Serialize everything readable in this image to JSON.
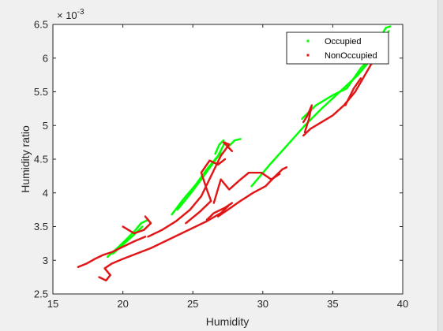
{
  "chart_data": {
    "type": "scatter",
    "title": "",
    "xlabel": "Humidity",
    "ylabel": "Humidity ratio",
    "y_exponent_label": "× 10",
    "y_exponent_power": "-3",
    "xlim": [
      15,
      40
    ],
    "ylim": [
      2.5,
      6.5
    ],
    "x_ticks": [
      15,
      20,
      25,
      30,
      35,
      40
    ],
    "x_tick_labels": [
      "15",
      "20",
      "25",
      "30",
      "35",
      "40"
    ],
    "y_ticks": [
      2.5,
      3,
      3.5,
      4,
      4.5,
      5,
      5.5,
      6,
      6.5
    ],
    "y_tick_labels": [
      "2.5",
      "3",
      "3.5",
      "4",
      "4.5",
      "5",
      "5.5",
      "6",
      "6.5"
    ],
    "grid": false,
    "legend_position": "top-right",
    "series": [
      {
        "name": "Occupied",
        "color": "#00ff00",
        "segments": [
          [
            [
              18.9,
              3.05
            ],
            [
              19.6,
              3.18
            ],
            [
              20.3,
              3.32
            ],
            [
              20.9,
              3.45
            ],
            [
              21.3,
              3.55
            ],
            [
              21.8,
              3.6
            ]
          ],
          [
            [
              19.3,
              3.1
            ],
            [
              20.1,
              3.25
            ],
            [
              20.8,
              3.38
            ],
            [
              21.4,
              3.5
            ]
          ],
          [
            [
              23.5,
              3.68
            ],
            [
              24.3,
              3.9
            ],
            [
              25.2,
              4.12
            ],
            [
              26.0,
              4.35
            ],
            [
              26.8,
              4.55
            ],
            [
              27.3,
              4.75
            ]
          ],
          [
            [
              23.9,
              3.75
            ],
            [
              24.8,
              3.98
            ],
            [
              25.6,
              4.2
            ],
            [
              26.3,
              4.4
            ],
            [
              27.0,
              4.6
            ]
          ],
          [
            [
              27.6,
              4.7
            ],
            [
              28.0,
              4.78
            ],
            [
              28.4,
              4.8
            ]
          ],
          [
            [
              26.6,
              4.58
            ],
            [
              26.9,
              4.72
            ],
            [
              27.2,
              4.78
            ]
          ],
          [
            [
              29.2,
              4.1
            ],
            [
              30.5,
              4.42
            ],
            [
              31.8,
              4.72
            ],
            [
              33.0,
              5.0
            ],
            [
              34.2,
              5.25
            ],
            [
              35.5,
              5.5
            ],
            [
              36.8,
              5.75
            ],
            [
              38.0,
              6.05
            ],
            [
              39.0,
              6.4
            ]
          ],
          [
            [
              32.8,
              5.1
            ],
            [
              33.8,
              5.3
            ],
            [
              35.0,
              5.45
            ],
            [
              36.0,
              5.55
            ],
            [
              37.0,
              5.85
            ],
            [
              37.8,
              6.02
            ]
          ],
          [
            [
              38.5,
              6.35
            ],
            [
              38.8,
              6.45
            ],
            [
              39.1,
              6.47
            ]
          ]
        ]
      },
      {
        "name": "NonOccupied",
        "color": "#e01414",
        "segments": [
          [
            [
              16.8,
              2.9
            ],
            [
              17.4,
              2.95
            ],
            [
              18.0,
              3.02
            ],
            [
              18.6,
              3.08
            ],
            [
              19.2,
              3.12
            ],
            [
              20.0,
              3.2
            ],
            [
              20.8,
              3.28
            ],
            [
              21.6,
              3.35
            ]
          ],
          [
            [
              18.3,
              2.75
            ],
            [
              18.8,
              2.7
            ],
            [
              19.1,
              2.78
            ],
            [
              18.7,
              2.88
            ],
            [
              19.2,
              2.95
            ],
            [
              20.0,
              3.02
            ],
            [
              21.0,
              3.1
            ],
            [
              22.0,
              3.18
            ],
            [
              23.0,
              3.28
            ],
            [
              24.0,
              3.38
            ],
            [
              25.0,
              3.48
            ],
            [
              26.0,
              3.58
            ],
            [
              27.0,
              3.7
            ],
            [
              27.5,
              3.8
            ]
          ],
          [
            [
              20.0,
              3.5
            ],
            [
              20.8,
              3.4
            ],
            [
              21.5,
              3.45
            ],
            [
              22.0,
              3.55
            ],
            [
              21.6,
              3.65
            ]
          ],
          [
            [
              21.8,
              3.35
            ],
            [
              22.8,
              3.45
            ],
            [
              23.8,
              3.58
            ],
            [
              24.8,
              3.75
            ],
            [
              25.6,
              3.95
            ],
            [
              26.3,
              4.25
            ],
            [
              27.0,
              4.55
            ],
            [
              27.6,
              4.72
            ],
            [
              27.2,
              4.75
            ],
            [
              27.8,
              4.62
            ]
          ],
          [
            [
              24.5,
              3.55
            ],
            [
              25.5,
              3.72
            ],
            [
              26.3,
              3.88
            ],
            [
              26.0,
              4.05
            ],
            [
              25.6,
              4.3
            ],
            [
              26.2,
              4.48
            ],
            [
              26.8,
              4.42
            ],
            [
              27.3,
              4.5
            ]
          ],
          [
            [
              26.8,
              3.65
            ],
            [
              27.5,
              3.75
            ],
            [
              28.4,
              3.88
            ],
            [
              29.3,
              4.0
            ],
            [
              30.2,
              4.1
            ],
            [
              30.9,
              4.25
            ],
            [
              31.4,
              4.35
            ],
            [
              31.7,
              4.38
            ]
          ],
          [
            [
              26.0,
              3.6
            ],
            [
              26.5,
              3.7
            ],
            [
              27.3,
              3.78
            ],
            [
              27.8,
              3.85
            ]
          ],
          [
            [
              26.5,
              3.85
            ],
            [
              27.0,
              4.2
            ],
            [
              27.6,
              4.05
            ],
            [
              28.3,
              4.18
            ],
            [
              29.0,
              4.3
            ],
            [
              29.9,
              4.3
            ],
            [
              30.6,
              4.2
            ],
            [
              31.2,
              4.28
            ]
          ],
          [
            [
              32.9,
              4.85
            ],
            [
              33.4,
              4.95
            ],
            [
              34.2,
              5.05
            ],
            [
              35.0,
              5.15
            ],
            [
              35.8,
              5.3
            ],
            [
              36.6,
              5.5
            ],
            [
              37.3,
              5.75
            ],
            [
              38.0,
              6.0
            ],
            [
              38.4,
              6.08
            ]
          ],
          [
            [
              32.9,
              5.05
            ],
            [
              33.2,
              5.15
            ],
            [
              33.5,
              5.3
            ],
            [
              33.3,
              5.1
            ],
            [
              33.0,
              4.9
            ]
          ],
          [
            [
              35.9,
              5.3
            ],
            [
              36.5,
              5.55
            ],
            [
              37.0,
              5.7
            ]
          ]
        ]
      }
    ]
  }
}
